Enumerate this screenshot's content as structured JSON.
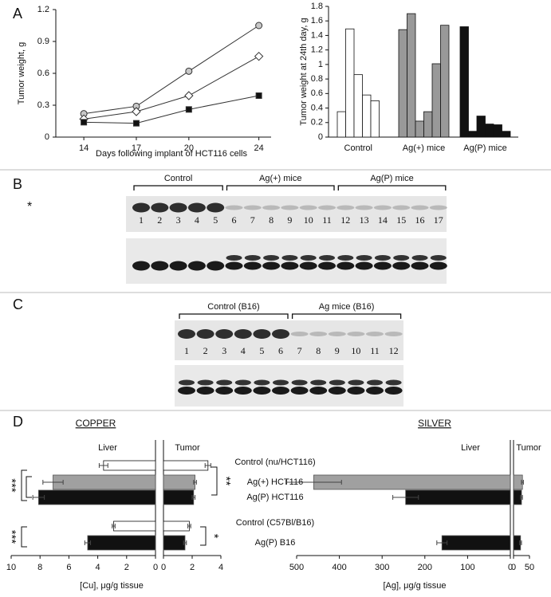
{
  "panel_labels": [
    "A",
    "B",
    "C",
    "D"
  ],
  "chart_data": [
    {
      "type": "line",
      "ylabel": "Tumor weight, g",
      "xlabel": "Days following implant of HCT116 cells",
      "x": [
        14,
        17,
        20,
        24
      ],
      "xlim": [
        12.4,
        24.7
      ],
      "xticks": [
        14,
        17,
        20,
        24
      ],
      "ylim": [
        0,
        1.2
      ],
      "yticks": [
        0,
        0.3,
        0.6,
        0.9,
        1.2
      ],
      "series": [
        {
          "marker": "circle",
          "color": "#c8c8c8",
          "values": [
            0.22,
            0.29,
            0.62,
            1.05
          ]
        },
        {
          "marker": "diamond",
          "color": "#ffffff",
          "values": [
            0.17,
            0.24,
            0.39,
            0.76
          ]
        },
        {
          "marker": "square",
          "color": "#111111",
          "values": [
            0.14,
            0.13,
            0.26,
            0.39
          ]
        }
      ]
    },
    {
      "type": "bar",
      "ylabel": "Tumor weight at 24th day, g",
      "ylim": [
        0,
        1.8
      ],
      "yticks": [
        0,
        0.2,
        0.4,
        0.6,
        0.8,
        1,
        1.2,
        1.4,
        1.6,
        1.8
      ],
      "groups": [
        {
          "label": "Control",
          "color": "#ffffff",
          "values": [
            0.35,
            1.49,
            0.86,
            0.58,
            0.5
          ]
        },
        {
          "label": "Ag(+) mice",
          "color": "#999999",
          "values": [
            1.48,
            1.7,
            0.22,
            0.35,
            1.01,
            1.54
          ]
        },
        {
          "label": "Ag(P) mice",
          "color": "#111111",
          "values": [
            1.52,
            0.08,
            0.29,
            0.18,
            0.17,
            0.08
          ]
        }
      ]
    },
    {
      "type": "butterfly",
      "title": "COPPER",
      "xlabel": "[Cu], μg/g tissue",
      "categories": [
        "Control (nu/HCT116)",
        "Ag(+) HCT116",
        "Ag(P) HCT116",
        "Control (C57Bl/B16)",
        "Ag(P) B16"
      ],
      "colors": [
        "#ffffff",
        "#a0a0a0",
        "#111111",
        "#ffffff",
        "#111111"
      ],
      "sides": [
        {
          "label": "Liver",
          "xlim": [
            0,
            10
          ],
          "xticks": [
            10,
            8,
            6,
            4,
            2,
            0
          ],
          "values": [
            3.6,
            7.1,
            8.1,
            2.9,
            4.7
          ],
          "errors": [
            0.3,
            0.7,
            0.4,
            0.1,
            0.2
          ]
        },
        {
          "label": "Tumor",
          "xlim": [
            0,
            4
          ],
          "xticks": [
            0,
            2,
            4
          ],
          "values": [
            3.1,
            2.2,
            2.1,
            1.8,
            1.5
          ],
          "errors": [
            0.2,
            0.1,
            0.1,
            0.1,
            0.1
          ]
        }
      ],
      "annotations": [
        "***",
        "**",
        "***",
        "*"
      ]
    },
    {
      "type": "butterfly",
      "title": "SILVER",
      "xlabel": "[Ag], μg/g tissue",
      "colors": [
        "#ffffff",
        "#a0a0a0",
        "#111111",
        "#ffffff",
        "#111111"
      ],
      "sides": [
        {
          "label": "Liver",
          "xlim": [
            0,
            500
          ],
          "xticks": [
            500,
            400,
            300,
            200,
            100,
            0
          ],
          "values": [
            null,
            460,
            245,
            null,
            160
          ],
          "errors": [
            null,
            65,
            30,
            null,
            12
          ]
        },
        {
          "label": "Tumor",
          "xlim": [
            0,
            50
          ],
          "xticks": [
            0,
            50
          ],
          "values": [
            null,
            28,
            25,
            null,
            22
          ],
          "errors": [
            null,
            3,
            3,
            null,
            3
          ]
        }
      ]
    }
  ],
  "blots": [
    {
      "marker": "*",
      "groups": [
        {
          "label": "Control",
          "lanes": [
            1,
            2,
            3,
            4,
            5
          ]
        },
        {
          "label": "Ag(+) mice",
          "lanes": [
            6,
            7,
            8,
            9,
            10,
            11
          ]
        },
        {
          "label": "Ag(P) mice",
          "lanes": [
            12,
            13,
            14,
            15,
            16,
            17
          ]
        }
      ]
    },
    {
      "groups": [
        {
          "label": "Control (B16)",
          "lanes": [
            1,
            2,
            3,
            4,
            5,
            6
          ]
        },
        {
          "label": "Ag mice (B16)",
          "lanes": [
            7,
            8,
            9,
            10,
            11,
            12
          ]
        }
      ]
    }
  ]
}
